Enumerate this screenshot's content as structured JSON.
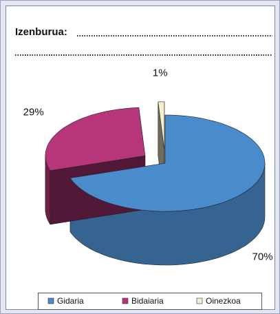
{
  "chart_data": {
    "type": "pie",
    "title": "Izenburua:",
    "categories": [
      "Gidaria",
      "Bidaiaria",
      "Oinezkoa"
    ],
    "values": [
      70,
      29,
      1
    ],
    "value_labels": [
      "70%",
      "29%",
      "1%"
    ],
    "colors": [
      "#4a8bcb",
      "#b7367a",
      "#f6efcf"
    ],
    "legend": "bottom"
  }
}
